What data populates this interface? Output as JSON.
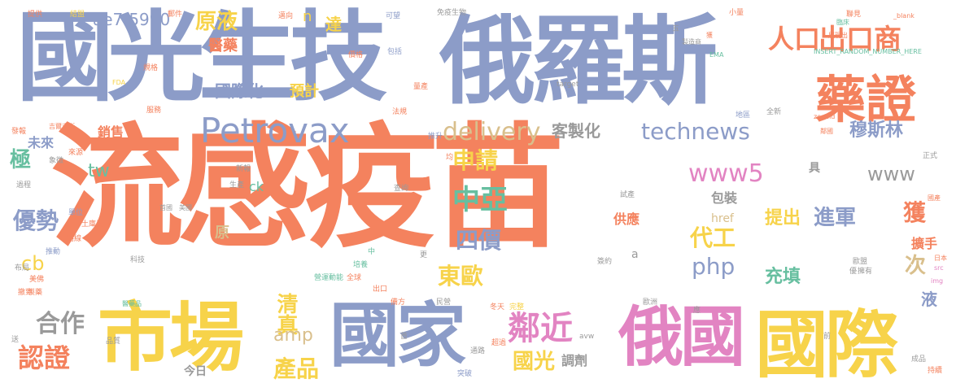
{
  "wordcloud": {
    "palette": {
      "orange": "#F4825E",
      "blue": "#8C9CC8",
      "yellow": "#F7D34A",
      "pink": "#E284C2",
      "green": "#67BFA0",
      "tan": "#D9BF8C",
      "gray": "#9A9A9A",
      "lime": "#A3CF5A"
    },
    "words": {
      "w1": "流感疫苗",
      "w2": "國光生技",
      "w3": "俄羅斯",
      "w4": "市場",
      "w5": "國家",
      "w6": "俄國",
      "w7": "國際",
      "w8": "藥證",
      "w9": "出口商",
      "w10": "人口",
      "w11": "Petrovax",
      "w12": "technews",
      "w13": "delivery",
      "w14": "客製化",
      "w15": "www5",
      "w16": "www",
      "w17": "穆斯林",
      "w18": "申請",
      "w19": "中亞",
      "w20": "四價",
      "w21": "東歐",
      "w22": "鄰近",
      "w23": "國光",
      "w24": "代工",
      "w25": "php",
      "w26": "進軍",
      "w27": "提出",
      "w28": "充填",
      "w29": "優勢",
      "w30": "認證",
      "w31": "合作",
      "w32": "產品",
      "w33": "清真",
      "w34": "amp",
      "w35": "原液",
      "w36": "醫藥",
      "w37": "國際化",
      "w38": "預計",
      "w39": "銷售",
      "w40": "未來",
      "w41": "極",
      "w42": "tw",
      "w43": "cb",
      "w44": "ae7f5990",
      "w45": "達",
      "w46": "n",
      "w47": "原",
      "w48": "包裝",
      "w49": "供應",
      "w50": "調劑",
      "w51": "今日",
      "w52": "獲",
      "w53": "次",
      "w54": "液",
      "w55": "擴手",
      "w56": "href",
      "w57": "ck",
      "w58": "具",
      "w59": "a",
      "w60": "INSERT_RANDOM_NUMBER_HERE",
      "w61": "_blank",
      "w62": "免疫生物",
      "w63": "target",
      "w64": "FDA",
      "w65": "EMA",
      "w66": "提供",
      "w67": "結盟",
      "w68": "郵件",
      "w69": "邁向",
      "w70": "可望",
      "w71": "小量",
      "w72": "聯見",
      "w73": "規格",
      "w74": "價格",
      "w75": "包括",
      "w76": "量產",
      "w77": "法規",
      "w78": "推升",
      "w79": "地區",
      "w80": "全新",
      "w81": "服務",
      "w82": "吉爾吉斯",
      "w83": "來源",
      "w84": "新報",
      "w85": "象徵",
      "w86": "過程",
      "w87": "單位",
      "w88": "土庫曼",
      "w89": "路線",
      "w90": "推動",
      "w91": "製藥",
      "w92": "撤到",
      "w93": "醫藥品",
      "w94": "營運動能",
      "w95": "培養",
      "w96": "全球",
      "w97": "出口",
      "w98": "民營",
      "w99": "歐洲",
      "w100": "冬天",
      "w101": "完整",
      "w102": "超過",
      "w103": "突破",
      "w104": "通路",
      "w105": "成品",
      "w106": "持續",
      "w107": "前",
      "w108": "正式",
      "w109": "國產",
      "w110": "日本",
      "w111": "歐盟",
      "w112": "擁有",
      "w113": "src",
      "w114": "img",
      "w115": "zoneid",
      "w116": "鄰國",
      "w117": "試產",
      "w118": "美國",
      "w119": "首國",
      "w120": "生產",
      "w121": "查詢",
      "w122": "科技",
      "w123": "更",
      "w124": "中",
      "w125": "送",
      "w126": "品質",
      "w127": "avw",
      "w128": "首",
      "w129": "備方",
      "w130": "簽約",
      "w131": "優",
      "w132": "臨床",
      "w133": "布局",
      "w134": "美佛",
      "w135": "均",
      "w136": "發報",
      "w137": "五",
      "w138": "製造商",
      "w139": "展現出",
      "w140": "獲",
      "w141": "應"
    }
  }
}
